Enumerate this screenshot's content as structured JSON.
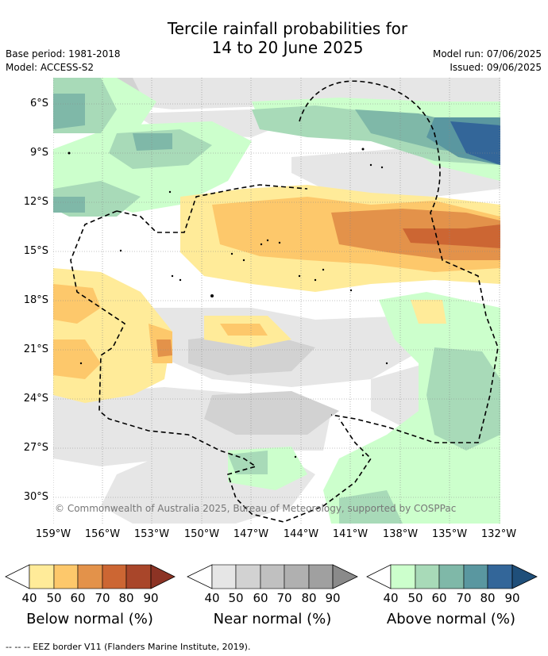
{
  "title_line1": "Tercile rainfall probabilities for",
  "title_line2": "14 to 20 June 2025",
  "base_period": "Base period: 1981-2018",
  "model": "Model: ACCESS-S2",
  "model_run": "Model run: 07/06/2025",
  "issued": "Issued: 09/06/2025",
  "lat_labels": [
    "6°S",
    "9°S",
    "12°S",
    "15°S",
    "18°S",
    "21°S",
    "24°S",
    "27°S",
    "30°S"
  ],
  "lon_labels": [
    "159°W",
    "156°W",
    "153°W",
    "150°W",
    "147°W",
    "144°W",
    "141°W",
    "138°W",
    "135°W",
    "132°W"
  ],
  "copyright": "© Commonwealth of Australia 2025, Bureau of Meteorology, supported by COSPPac",
  "legends": [
    {
      "label": "Below normal (%)",
      "ticks": [
        "40",
        "50",
        "60",
        "70",
        "80",
        "90"
      ],
      "colors": [
        "#ffeb99",
        "#fdc86b",
        "#e3924a",
        "#cc6633",
        "#a9462a",
        "#8c3324"
      ]
    },
    {
      "label": "Near normal (%)",
      "ticks": [
        "40",
        "50",
        "60",
        "70",
        "80",
        "90"
      ],
      "colors": [
        "#e6e6e6",
        "#d2d2d2",
        "#c0c0c0",
        "#b0b0b0",
        "#a0a0a0",
        "#8a8a8a"
      ]
    },
    {
      "label": "Above normal (%)",
      "ticks": [
        "40",
        "50",
        "60",
        "70",
        "80",
        "90"
      ],
      "colors": [
        "#ccffcc",
        "#a8dab8",
        "#7fb8a8",
        "#5a97a0",
        "#336699",
        "#1f4f7a"
      ]
    }
  ],
  "eez_note": "--  --  -- EEZ border V11 (Flanders Marine Institute, 2019)."
}
